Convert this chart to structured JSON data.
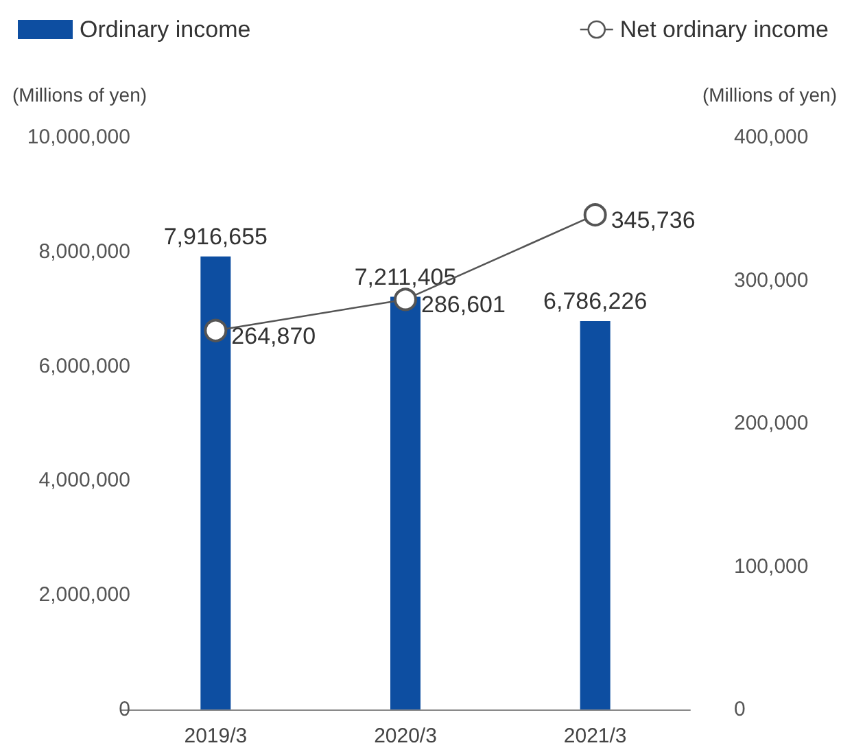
{
  "chart_data": {
    "type": "bar",
    "categories": [
      "2019/3",
      "2020/3",
      "2021/3"
    ],
    "ylabel": "(Millions of yen)",
    "y2label": "(Millions of yen)",
    "series": [
      {
        "name": "Ordinary income",
        "color": "#0d4ea1",
        "values": [
          7916655,
          7211405,
          6786226
        ],
        "value_labels": [
          "7,916,655",
          "7,211,405",
          "6,786,226"
        ]
      },
      {
        "name": "Net ordinary income",
        "type": "line",
        "axis": "y2",
        "color": "#555555",
        "marker": "circle",
        "values": [
          264870,
          286601,
          345736
        ],
        "value_labels": [
          "264,870",
          "286,601",
          "345,736"
        ]
      }
    ],
    "ylim": [
      0,
      10000000
    ],
    "yticks": [
      0,
      {
        "value": 2000000,
        "label": "2,000,000"
      },
      {
        "value": 4000000,
        "label": "4,000,000"
      },
      {
        "value": 6000000,
        "label": "6,000,000"
      },
      {
        "value": 8000000,
        "label": "8,000,000"
      },
      {
        "value": 10000000,
        "label": "10,000,000"
      }
    ],
    "y2lim": [
      0,
      400000
    ],
    "y2ticks": [
      0,
      {
        "value": 100000,
        "label": "100,000"
      },
      {
        "value": 200000,
        "label": "200,000"
      },
      {
        "value": 300000,
        "label": "300,000"
      },
      {
        "value": 400000,
        "label": "400,000"
      }
    ],
    "legend": "top"
  }
}
